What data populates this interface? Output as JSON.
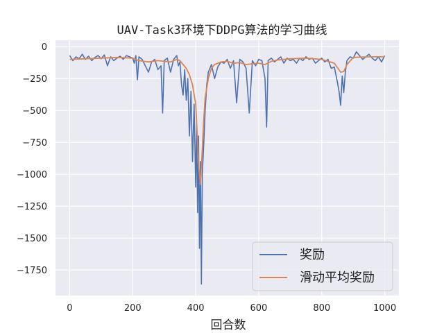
{
  "chart_data": {
    "type": "line",
    "title": "UAV-Task3环境下DDPG算法的学习曲线",
    "xlabel": "回合数",
    "ylabel": "",
    "xlim": [
      -45,
      1045
    ],
    "ylim": [
      -1950,
      50
    ],
    "xticks": [
      0,
      200,
      400,
      600,
      800,
      1000
    ],
    "yticks": [
      0,
      -250,
      -500,
      -750,
      -1000,
      -1250,
      -1500,
      -1750
    ],
    "xtick_labels": [
      "0",
      "200",
      "400",
      "600",
      "800",
      "1000"
    ],
    "ytick_labels": [
      "0",
      "−250",
      "−500",
      "−750",
      "−1000",
      "−1250",
      "−1500",
      "−1750"
    ],
    "grid": true,
    "legend": {
      "position": "bottom-right"
    },
    "colors": {
      "background": "#eaeaf2",
      "grid": "#ffffff",
      "reward": "#4c72b0",
      "moving_avg": "#dd8452"
    },
    "series": [
      {
        "name": "奖励",
        "x": [
          0,
          10,
          20,
          30,
          40,
          50,
          60,
          70,
          80,
          90,
          100,
          110,
          120,
          130,
          140,
          150,
          160,
          170,
          180,
          190,
          200,
          205,
          210,
          215,
          220,
          230,
          240,
          250,
          260,
          270,
          280,
          290,
          295,
          300,
          310,
          320,
          330,
          340,
          345,
          350,
          355,
          360,
          365,
          370,
          375,
          380,
          385,
          390,
          395,
          400,
          403,
          406,
          409,
          412,
          415,
          418,
          421,
          425,
          430,
          435,
          440,
          450,
          460,
          470,
          480,
          490,
          500,
          510,
          520,
          530,
          540,
          550,
          560,
          570,
          580,
          590,
          600,
          610,
          620,
          625,
          630,
          640,
          650,
          660,
          670,
          680,
          690,
          700,
          710,
          720,
          730,
          740,
          750,
          760,
          770,
          780,
          790,
          800,
          810,
          820,
          830,
          840,
          850,
          855,
          860,
          865,
          870,
          875,
          880,
          890,
          900,
          910,
          920,
          930,
          940,
          950,
          960,
          970,
          980,
          990,
          1000
        ],
        "y": [
          -70,
          -110,
          -80,
          -95,
          -60,
          -100,
          -75,
          -110,
          -85,
          -70,
          -95,
          -65,
          -150,
          -80,
          -110,
          -90,
          -75,
          -100,
          -70,
          -80,
          -90,
          -130,
          -70,
          -260,
          -80,
          -100,
          -150,
          -200,
          -120,
          -100,
          -180,
          -150,
          -520,
          -110,
          -90,
          -200,
          -100,
          -70,
          -150,
          -120,
          -300,
          -380,
          -180,
          -420,
          -250,
          -700,
          -350,
          -900,
          -450,
          -1100,
          -600,
          -1300,
          -700,
          -1580,
          -900,
          -1860,
          -1000,
          -800,
          -500,
          -300,
          -200,
          -140,
          -250,
          -160,
          -120,
          -130,
          -100,
          -170,
          -110,
          -440,
          -100,
          -120,
          -170,
          -520,
          -110,
          -150,
          -100,
          -110,
          -250,
          -630,
          -110,
          -90,
          -120,
          -100,
          -80,
          -130,
          -90,
          -110,
          -100,
          -130,
          -90,
          -110,
          -80,
          -100,
          -90,
          -130,
          -110,
          -90,
          -120,
          -100,
          -170,
          -160,
          -280,
          -350,
          -460,
          -230,
          -360,
          -200,
          -110,
          -80,
          -90,
          -40,
          -70,
          -100,
          -80,
          -60,
          -90,
          -110,
          -80,
          -120,
          -70
        ]
      },
      {
        "name": "滑动平均奖励",
        "x": [
          0,
          50,
          100,
          150,
          200,
          220,
          250,
          280,
          300,
          320,
          340,
          350,
          360,
          370,
          380,
          390,
          400,
          405,
          410,
          415,
          420,
          425,
          430,
          440,
          450,
          460,
          480,
          500,
          520,
          540,
          560,
          580,
          600,
          620,
          640,
          660,
          700,
          750,
          800,
          840,
          860,
          870,
          880,
          900,
          950,
          1000
        ],
        "y": [
          -100,
          -95,
          -90,
          -85,
          -90,
          -110,
          -120,
          -110,
          -115,
          -120,
          -100,
          -110,
          -140,
          -170,
          -220,
          -300,
          -450,
          -700,
          -950,
          -1080,
          -850,
          -600,
          -400,
          -250,
          -170,
          -140,
          -120,
          -115,
          -130,
          -125,
          -140,
          -135,
          -130,
          -140,
          -115,
          -105,
          -95,
          -90,
          -100,
          -130,
          -200,
          -195,
          -140,
          -85,
          -80,
          -80
        ]
      }
    ]
  }
}
